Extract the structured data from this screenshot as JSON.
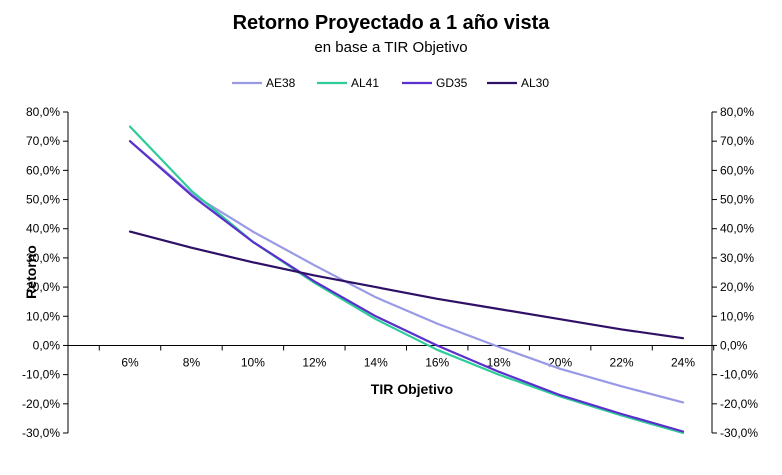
{
  "chart_data": {
    "type": "line",
    "title": "Retorno Proyectado a 1 año vista",
    "subtitle": "en base a TIR Objetivo",
    "xlabel": "TIR Objetivo",
    "ylabel": "Retorno",
    "categories": [
      "6%",
      "8%",
      "10%",
      "12%",
      "14%",
      "16%",
      "18%",
      "20%",
      "22%",
      "24%"
    ],
    "x": [
      6,
      8,
      10,
      12,
      14,
      16,
      18,
      20,
      22,
      24
    ],
    "ylim": [
      -30,
      80
    ],
    "yticks": [
      80,
      70,
      60,
      50,
      40,
      30,
      20,
      10,
      0,
      -10,
      -20,
      -30
    ],
    "ytick_labels": [
      "80,0%",
      "70,0%",
      "60,0%",
      "50,0%",
      "40,0%",
      "30,0%",
      "20,0%",
      "10,0%",
      "0,0%",
      "-10,0%",
      "-20,0%",
      "-30,0%"
    ],
    "legend_position": "top",
    "grid": false,
    "series": [
      {
        "name": "AE38",
        "color": "#9999e6",
        "values": [
          70,
          52,
          39,
          27.5,
          16.5,
          7.5,
          -0.5,
          -8,
          -14,
          -19.5
        ]
      },
      {
        "name": "AL41",
        "color": "#2ecc9a",
        "values": [
          75,
          53,
          35.5,
          21.5,
          9,
          -1.5,
          -10,
          -17.5,
          -24,
          -30
        ]
      },
      {
        "name": "GD35",
        "color": "#5b2fcc",
        "values": [
          70,
          51.5,
          35.5,
          22,
          10,
          0,
          -9,
          -17,
          -23.5,
          -29.5
        ]
      },
      {
        "name": "AL30",
        "color": "#2e1166",
        "values": [
          39,
          33.5,
          28.5,
          24,
          20,
          16,
          12.5,
          9,
          5.5,
          2.5
        ]
      }
    ]
  }
}
